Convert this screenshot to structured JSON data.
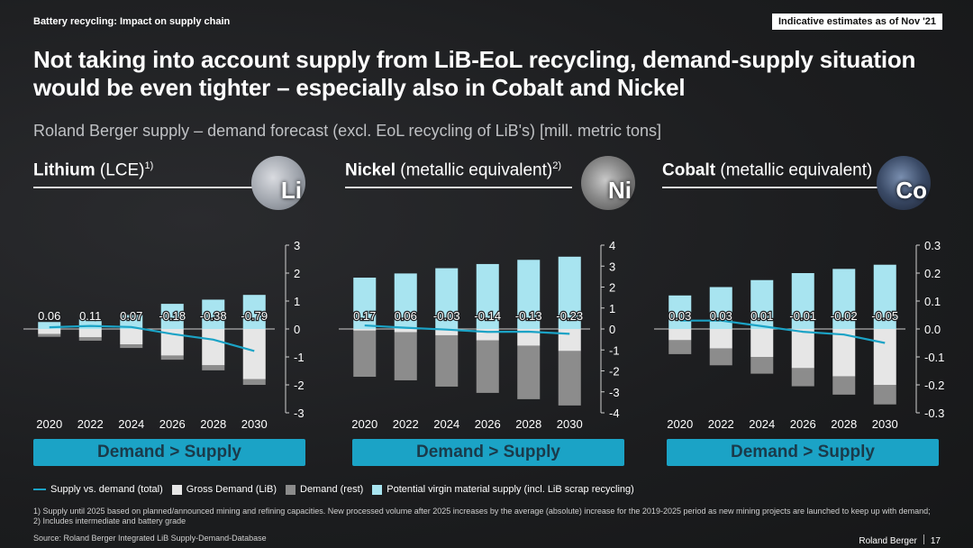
{
  "header": {
    "topic": "Battery recycling: Impact on supply chain",
    "badge": "Indicative estimates as of Nov '21",
    "title": "Not taking into account supply from LiB-EoL recycling, demand-supply situation would be even tighter – especially also in Cobalt and Nickel",
    "subtitle": "Roland Berger supply – demand forecast (excl. EoL recycling of LiB's) [mill. metric tons]"
  },
  "panels": [
    {
      "name_bold": "Lithium",
      "name_rest": " (LCE)",
      "sup": "1)",
      "symbol": "Li",
      "banner": "Demand > Supply"
    },
    {
      "name_bold": "Nickel",
      "name_rest": " (metallic equivalent)",
      "sup": "2)",
      "symbol": "Ni",
      "banner": "Demand > Supply"
    },
    {
      "name_bold": "Cobalt",
      "name_rest": " (metallic equivalent)",
      "sup": "",
      "symbol": "Co",
      "banner": "Demand > Supply"
    }
  ],
  "legend": {
    "line": "Supply vs. demand (total)",
    "gross": "Gross Demand (LiB)",
    "rest": "Demand (rest)",
    "supply": "Potential virgin material supply (incl. LiB scrap recycling)"
  },
  "colors": {
    "supply": "#a8e4f0",
    "gross": "#e6e6e6",
    "rest": "#8c8c8c",
    "line": "#1ba3c6",
    "banner": "#1ba3c6"
  },
  "footnote": "1) Supply until 2025 based on planned/announced mining and refining capacities. New processed volume after 2025 increases by the average (absolute) increase for the 2019-2025 period as new mining projects are launched to keep up with demand; 2) Includes intermediate and battery grade",
  "source": "Source: Roland Berger Integrated LiB Supply-Demand-Database",
  "brand": "Roland Berger",
  "page_number": "17",
  "chart_data": [
    {
      "type": "bar",
      "title": "Lithium (LCE)",
      "categories": [
        "2020",
        "2022",
        "2024",
        "2026",
        "2028",
        "2030"
      ],
      "ylim": [
        -3,
        3
      ],
      "yticks": [
        3,
        2,
        1,
        0,
        -1,
        -2,
        -3
      ],
      "series": [
        {
          "name": "Potential virgin material supply (incl. LiB scrap recycling)",
          "values": [
            0.25,
            0.35,
            0.5,
            0.9,
            1.05,
            1.22
          ]
        },
        {
          "name": "Gross Demand (LiB)",
          "values": [
            -0.18,
            -0.3,
            -0.55,
            -0.95,
            -1.3,
            -1.8
          ]
        },
        {
          "name": "Demand (rest)",
          "values": [
            -0.1,
            -0.12,
            -0.13,
            -0.15,
            -0.18,
            -0.2
          ]
        },
        {
          "name": "Supply vs. demand (total)",
          "values": [
            0.06,
            0.11,
            0.07,
            -0.18,
            -0.38,
            -0.79
          ]
        }
      ],
      "labels": [
        "0.06",
        "0.11",
        "0.07",
        "-0.18",
        "-0.38",
        "-0.79"
      ]
    },
    {
      "type": "bar",
      "title": "Nickel (metallic equivalent)",
      "categories": [
        "2020",
        "2022",
        "2024",
        "2026",
        "2028",
        "2030"
      ],
      "ylim": [
        -4,
        4
      ],
      "yticks": [
        4,
        3,
        2,
        1,
        0,
        -1,
        -2,
        -3,
        -4
      ],
      "series": [
        {
          "name": "Potential virgin material supply (incl. LiB scrap recycling)",
          "values": [
            2.45,
            2.65,
            2.9,
            3.1,
            3.3,
            3.45
          ]
        },
        {
          "name": "Gross Demand (LiB)",
          "values": [
            -0.08,
            -0.15,
            -0.3,
            -0.55,
            -0.8,
            -1.05
          ]
        },
        {
          "name": "Demand (rest)",
          "values": [
            -2.2,
            -2.3,
            -2.45,
            -2.5,
            -2.55,
            -2.6
          ]
        },
        {
          "name": "Supply vs. demand (total)",
          "values": [
            0.17,
            0.06,
            -0.03,
            -0.14,
            -0.13,
            -0.23
          ]
        }
      ],
      "labels": [
        "0.17",
        "0.06",
        "-0.03",
        "-0.14",
        "-0.13",
        "-0.23"
      ]
    },
    {
      "type": "bar",
      "title": "Cobalt (metallic equivalent)",
      "categories": [
        "2020",
        "2022",
        "2024",
        "2026",
        "2028",
        "2030"
      ],
      "ylim": [
        -0.3,
        0.3
      ],
      "yticks": [
        0.3,
        0.2,
        0.1,
        0.0,
        -0.1,
        -0.2,
        -0.3
      ],
      "series": [
        {
          "name": "Potential virgin material supply (incl. LiB scrap recycling)",
          "values": [
            0.12,
            0.15,
            0.175,
            0.2,
            0.215,
            0.23
          ]
        },
        {
          "name": "Gross Demand (LiB)",
          "values": [
            -0.04,
            -0.07,
            -0.1,
            -0.14,
            -0.17,
            -0.2
          ]
        },
        {
          "name": "Demand (rest)",
          "values": [
            -0.05,
            -0.06,
            -0.06,
            -0.065,
            -0.065,
            -0.07
          ]
        },
        {
          "name": "Supply vs. demand (total)",
          "values": [
            0.03,
            0.03,
            0.01,
            -0.01,
            -0.02,
            -0.05
          ]
        }
      ],
      "labels": [
        "0.03",
        "0.03",
        "0.01",
        "-0.01",
        "-0.02",
        "-0.05"
      ]
    }
  ]
}
